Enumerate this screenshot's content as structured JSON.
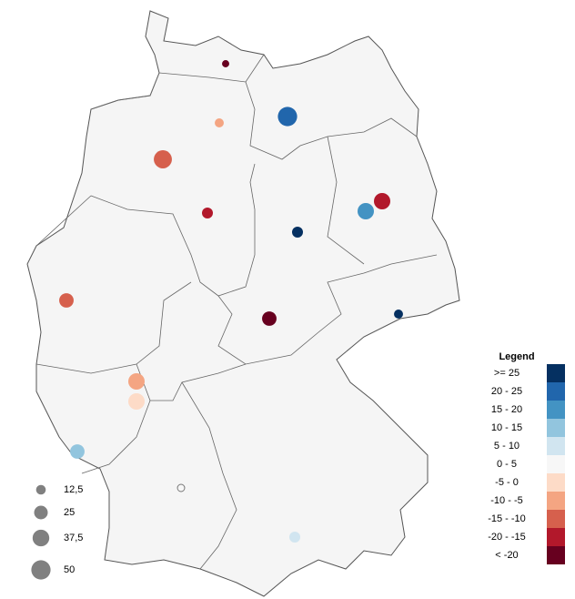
{
  "legend": {
    "title": "Legend",
    "color_classes": [
      {
        "label": ">=  25",
        "min": 25,
        "max": null,
        "color": "#053061"
      },
      {
        "label": "20 -  25",
        "min": 20,
        "max": 25,
        "color": "#2166ac"
      },
      {
        "label": "15 -  20",
        "min": 15,
        "max": 20,
        "color": "#4393c3"
      },
      {
        "label": "10 -  15",
        "min": 10,
        "max": 15,
        "color": "#92c5de"
      },
      {
        "label": "5 -  10",
        "min": 5,
        "max": 10,
        "color": "#d1e5f0"
      },
      {
        "label": "0 -  5",
        "min": 0,
        "max": 5,
        "color": "#f7f7f7"
      },
      {
        "label": "-5 -  0",
        "min": -5,
        "max": 0,
        "color": "#fddbc7"
      },
      {
        "label": "-10 -  -5",
        "min": -10,
        "max": -5,
        "color": "#f4a582"
      },
      {
        "label": "-15 - -10",
        "min": -15,
        "max": -10,
        "color": "#d6604d"
      },
      {
        "label": "-20 - -15",
        "min": -20,
        "max": -15,
        "color": "#b2182b"
      },
      {
        "label": "<  -20",
        "min": null,
        "max": -20,
        "color": "#67001f"
      }
    ],
    "sizes": [
      {
        "value": 12.5,
        "label": "12,5"
      },
      25,
      {
        "value": 37.5,
        "label": "37,5"
      },
      50
    ],
    "size_color": "#808080"
  },
  "points": [
    {
      "value": -25,
      "size": 7
    },
    {
      "value": 22,
      "size": 50
    },
    {
      "value": -7,
      "size": 11
    },
    {
      "value": -12,
      "size": 44
    },
    {
      "value": -17,
      "size": 36
    },
    {
      "value": 17,
      "size": 36
    },
    {
      "value": -18,
      "size": 16
    },
    {
      "value": 28,
      "size": 16
    },
    {
      "value": -13,
      "size": 28
    },
    {
      "value": -23,
      "size": 28
    },
    {
      "value": 30,
      "size": 11
    },
    {
      "value": -8,
      "size": 36
    },
    {
      "value": -2,
      "size": 36
    },
    {
      "value": 12,
      "size": 28
    },
    {
      "value": 2,
      "size": 7
    },
    {
      "value": 7,
      "size": 16
    }
  ]
}
